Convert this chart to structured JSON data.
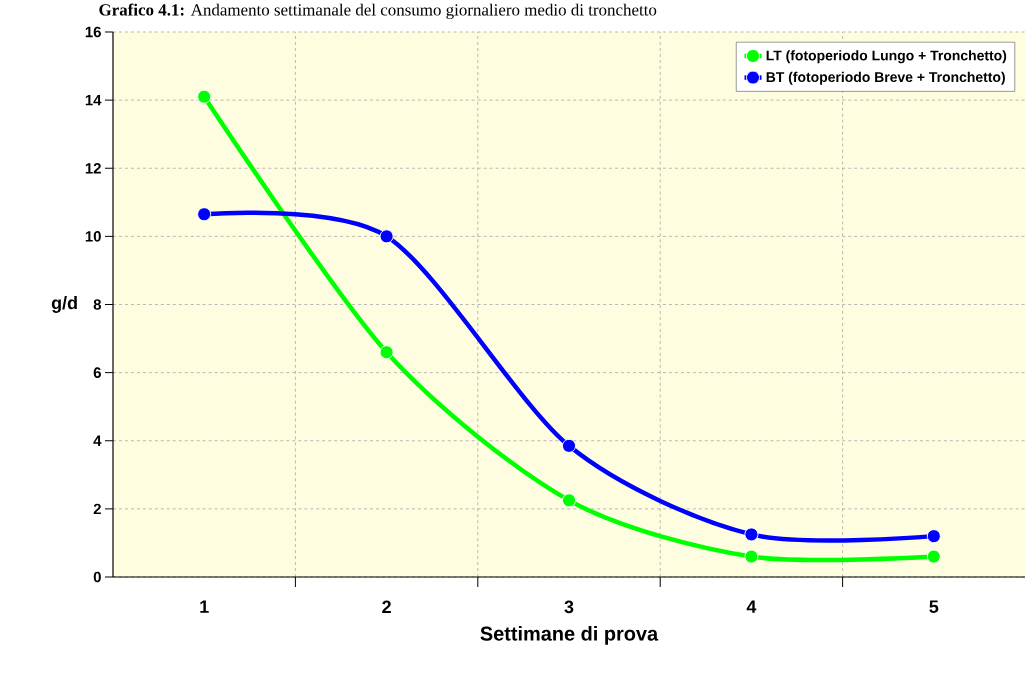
{
  "chart_data": {
    "type": "line",
    "title": "**Grafico 4.1:** Andamento settimanale del consumo giornaliero medio di tronchetto",
    "xlabel": "Settimane di prova",
    "ylabel": "g/d",
    "categories": [
      "1",
      "2",
      "3",
      "4",
      "5"
    ],
    "series": [
      {
        "name": "LT (fotoperiodo Lungo + Tronchetto)",
        "color": "#00ff00",
        "values": [
          14.1,
          6.6,
          2.25,
          0.6,
          0.6
        ]
      },
      {
        "name": "BT (fotoperiodo Breve + Tronchetto)",
        "color": "#0000ff",
        "values": [
          10.65,
          10.0,
          3.85,
          1.25,
          1.2
        ]
      }
    ],
    "ylim": [
      0,
      16
    ],
    "yticks": [
      0,
      2,
      4,
      6,
      8,
      10,
      12,
      14,
      16
    ],
    "grid": true,
    "legend": "top right",
    "marker": "circle",
    "line_style": "solid"
  }
}
